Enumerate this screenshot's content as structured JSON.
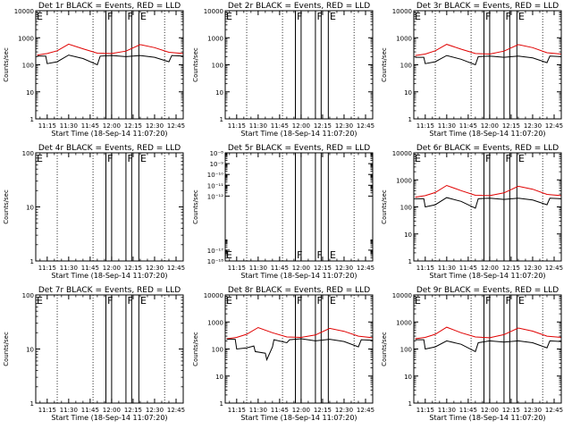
{
  "colors": {
    "events": "#000000",
    "lld": "#e00000",
    "background": "#ffffff"
  },
  "shared": {
    "x_tick_labels": [
      "11:15",
      "11:30",
      "11:45",
      "12:00",
      "12:15",
      "12:30",
      "12:45"
    ],
    "x_tick_minutes": [
      15,
      30,
      45,
      60,
      75,
      90,
      105
    ],
    "xlim_minutes": [
      7,
      110
    ],
    "xlabel": "Start Time (18-Sep-14 11:07:20)",
    "ylabel": "Counts/sec",
    "dotted_line_minutes": [
      22,
      47,
      97
    ],
    "solid_line_minutes": [
      56,
      60,
      70,
      74,
      79
    ],
    "marker_letters": [
      {
        "label": "F",
        "minute": 57
      },
      {
        "label": "F",
        "minute": 71
      },
      {
        "label": "E",
        "minute": 80
      }
    ],
    "start_marker": "E"
  },
  "chart_data": [
    {
      "type": "line",
      "title": "Det 1r  BLACK = Events, RED = LLD",
      "yscale": "log",
      "ylim": [
        1,
        10000
      ],
      "ytick_labels": [
        "1",
        "10",
        "100",
        "1000",
        "10000"
      ],
      "ytick_values": [
        1,
        10,
        100,
        1000,
        10000
      ],
      "series": [
        {
          "name": "LLD",
          "x": [
            8,
            15,
            22,
            30,
            40,
            50,
            60,
            70,
            80,
            90,
            100,
            110
          ],
          "values": [
            230,
            260,
            330,
            580,
            390,
            270,
            260,
            320,
            560,
            430,
            290,
            260
          ]
        },
        {
          "name": "Events",
          "x": [
            8,
            14,
            15,
            22,
            30,
            40,
            50,
            52,
            60,
            70,
            80,
            90,
            100,
            102,
            110
          ],
          "values": [
            210,
            210,
            110,
            130,
            230,
            170,
            100,
            210,
            220,
            200,
            220,
            190,
            130,
            220,
            210
          ]
        }
      ]
    },
    {
      "type": "line",
      "title": "Det 2r  BLACK = Events, RED = LLD",
      "yscale": "log",
      "ylim": [
        1,
        10000
      ],
      "ytick_labels": [
        "1",
        "10",
        "100",
        "1000",
        "10000"
      ],
      "ytick_values": [
        1,
        10,
        100,
        1000,
        10000
      ],
      "series": []
    },
    {
      "type": "line",
      "title": "Det 3r  BLACK = Events, RED = LLD",
      "yscale": "log",
      "ylim": [
        1,
        10000
      ],
      "ytick_labels": [
        "1",
        "10",
        "100",
        "1000",
        "10000"
      ],
      "ytick_values": [
        1,
        10,
        100,
        1000,
        10000
      ],
      "series": [
        {
          "name": "LLD",
          "x": [
            8,
            15,
            22,
            30,
            40,
            50,
            60,
            70,
            80,
            90,
            100,
            110
          ],
          "values": [
            220,
            250,
            330,
            570,
            380,
            260,
            250,
            320,
            560,
            430,
            280,
            250
          ]
        },
        {
          "name": "Events",
          "x": [
            8,
            14,
            15,
            22,
            30,
            40,
            50,
            52,
            60,
            70,
            80,
            90,
            100,
            102,
            110
          ],
          "values": [
            190,
            190,
            110,
            130,
            220,
            160,
            100,
            200,
            210,
            190,
            210,
            180,
            120,
            210,
            200
          ]
        }
      ]
    },
    {
      "type": "line",
      "title": "Det 4r  BLACK = Events, RED = LLD",
      "yscale": "log",
      "ylim": [
        1,
        100
      ],
      "ytick_labels": [
        "1",
        "10",
        "100"
      ],
      "ytick_values": [
        1,
        10,
        100
      ],
      "series": []
    },
    {
      "type": "line",
      "title": "Det 5r  BLACK = Events, RED = LLD",
      "yscale": "log",
      "ylim": [
        1e-18,
        1e-08
      ],
      "ytick_labels": [
        "10⁻¹⁸",
        "10⁻¹⁷",
        "10⁻¹²",
        "10⁻¹¹",
        "10⁻¹⁰",
        "10⁻⁹",
        "10⁻⁸"
      ],
      "ytick_values": [
        1e-18,
        1e-17,
        1e-12,
        1e-11,
        1e-10,
        1e-09,
        1e-08
      ],
      "series": []
    },
    {
      "type": "line",
      "title": "Det 6r  BLACK = Events, RED = LLD",
      "yscale": "log",
      "ylim": [
        1,
        10000
      ],
      "ytick_labels": [
        "1",
        "10",
        "100",
        "1000",
        "10000"
      ],
      "ytick_values": [
        1,
        10,
        100,
        1000,
        10000
      ],
      "series": [
        {
          "name": "LLD",
          "x": [
            8,
            15,
            22,
            30,
            40,
            50,
            60,
            70,
            80,
            90,
            100,
            110
          ],
          "values": [
            230,
            260,
            340,
            620,
            400,
            270,
            260,
            330,
            580,
            450,
            290,
            260
          ]
        },
        {
          "name": "Events",
          "x": [
            8,
            14,
            15,
            22,
            30,
            40,
            50,
            52,
            60,
            70,
            80,
            90,
            100,
            102,
            110
          ],
          "values": [
            200,
            200,
            100,
            120,
            220,
            160,
            90,
            200,
            210,
            190,
            210,
            180,
            120,
            210,
            200
          ]
        }
      ]
    },
    {
      "type": "line",
      "title": "Det 7r  BLACK = Events, RED = LLD",
      "yscale": "log",
      "ylim": [
        1,
        100
      ],
      "ytick_labels": [
        "1",
        "10",
        "100"
      ],
      "ytick_values": [
        1,
        10,
        100
      ],
      "series": []
    },
    {
      "type": "line",
      "title": "Det 8r  BLACK = Events, RED = LLD",
      "yscale": "log",
      "ylim": [
        1,
        10000
      ],
      "ytick_labels": [
        "1",
        "10",
        "100",
        "1000",
        "10000"
      ],
      "ytick_values": [
        1,
        10,
        100,
        1000,
        10000
      ],
      "series": [
        {
          "name": "LLD",
          "x": [
            8,
            15,
            22,
            30,
            40,
            50,
            60,
            70,
            80,
            90,
            100,
            110
          ],
          "values": [
            240,
            270,
            350,
            620,
            400,
            280,
            270,
            330,
            580,
            450,
            300,
            260
          ]
        },
        {
          "name": "Events",
          "x": [
            8,
            14,
            15,
            22,
            27,
            28,
            35,
            36,
            40,
            41,
            50,
            52,
            60,
            70,
            80,
            90,
            100,
            102,
            110
          ],
          "values": [
            230,
            230,
            100,
            110,
            130,
            80,
            70,
            40,
            120,
            220,
            170,
            220,
            240,
            200,
            230,
            190,
            120,
            220,
            210
          ]
        }
      ]
    },
    {
      "type": "line",
      "title": "Det 9r  BLACK = Events, RED = LLD",
      "yscale": "log",
      "ylim": [
        1,
        10000
      ],
      "ytick_labels": [
        "1",
        "10",
        "100",
        "1000",
        "10000"
      ],
      "ytick_values": [
        1,
        10,
        100,
        1000,
        10000
      ],
      "series": [
        {
          "name": "LLD",
          "x": [
            8,
            15,
            22,
            30,
            40,
            50,
            60,
            70,
            80,
            90,
            100,
            110
          ],
          "values": [
            240,
            270,
            350,
            640,
            400,
            280,
            260,
            340,
            600,
            460,
            300,
            270
          ]
        },
        {
          "name": "Events",
          "x": [
            8,
            14,
            15,
            22,
            30,
            40,
            50,
            52,
            60,
            70,
            80,
            90,
            100,
            102,
            110
          ],
          "values": [
            220,
            220,
            100,
            120,
            200,
            150,
            80,
            170,
            200,
            180,
            200,
            170,
            110,
            200,
            190
          ]
        }
      ]
    }
  ]
}
